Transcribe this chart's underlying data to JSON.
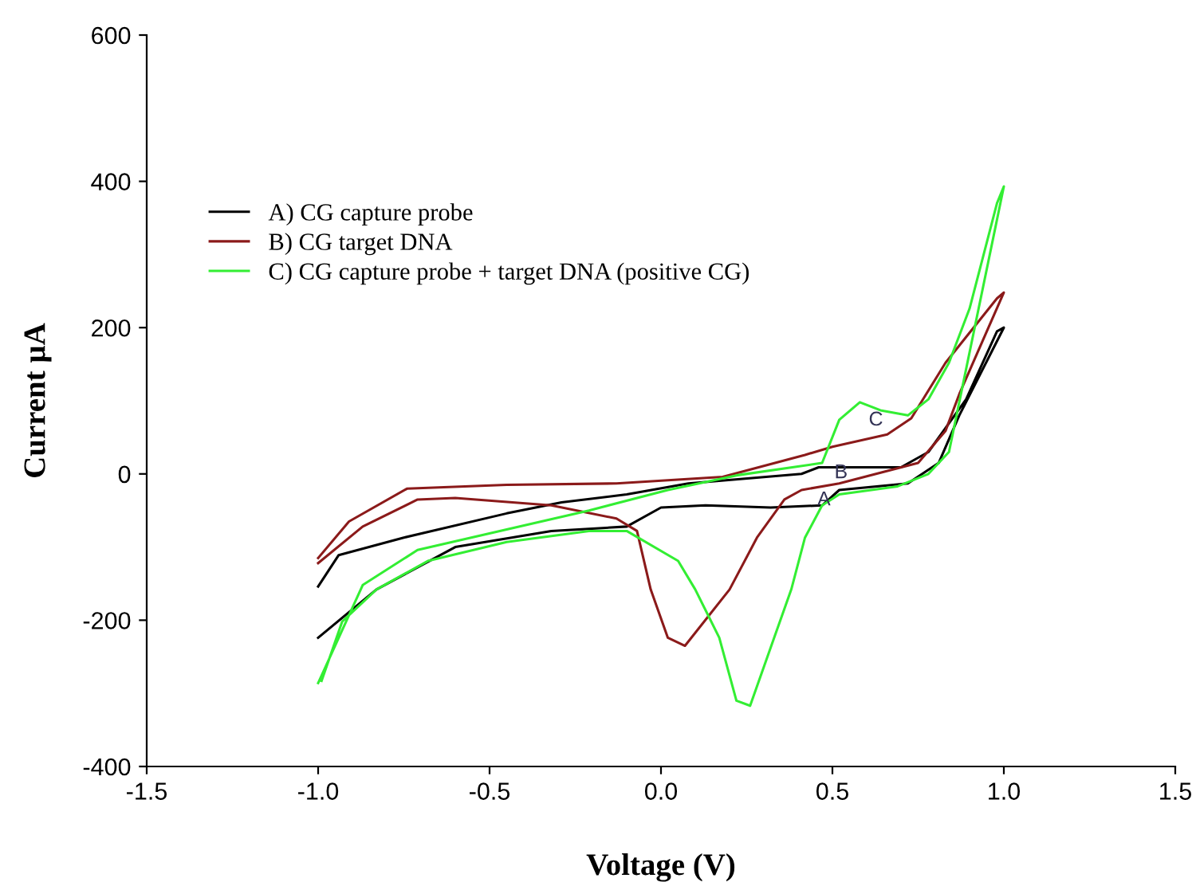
{
  "chart_data": {
    "type": "line",
    "xlabel": "Voltage (V)",
    "ylabel": "Current µA",
    "xlim": [
      -1.5,
      1.5
    ],
    "ylim": [
      -400,
      600
    ],
    "xticks": [
      -1.5,
      {
        "value": -1.0,
        "label": "-1.0"
      },
      -0.5,
      {
        "value": 0.0,
        "label": "0.0"
      },
      0.5,
      {
        "value": 1.0,
        "label": "1.0"
      },
      1.5
    ],
    "yticks": [
      -400,
      -200,
      0,
      200,
      400,
      600
    ],
    "legend": "top left",
    "grid": false,
    "marker": "none",
    "line_style": "solid",
    "series": [
      {
        "name": "A) CG capture probe",
        "color": "#000000",
        "x": [
          -1.0,
          -0.94,
          -0.75,
          -0.45,
          -0.29,
          -0.1,
          0.08,
          0.41,
          0.46,
          0.7,
          0.78,
          0.89,
          0.98,
          1.0,
          0.87,
          0.81,
          0.72,
          0.52,
          0.47,
          0.32,
          0.13,
          0.0,
          -0.1,
          -0.32,
          -0.6,
          -0.83,
          -1.0
        ],
        "values": [
          -154,
          -111,
          -87,
          -54,
          -39,
          -28,
          -13,
          0,
          9,
          9,
          30,
          102,
          195,
          200,
          80,
          15,
          -13,
          -22,
          -43,
          -46,
          -43,
          -46,
          -72,
          -78,
          -100,
          -158,
          -224
        ]
      },
      {
        "name": "B) CG target DNA",
        "color": "#8b1a1a",
        "x": [
          -1.0,
          -0.91,
          -0.74,
          -0.45,
          -0.13,
          0.18,
          0.42,
          0.5,
          0.66,
          0.73,
          0.83,
          0.98,
          1.0,
          0.87,
          0.83,
          0.75,
          0.52,
          0.41,
          0.36,
          0.28,
          0.2,
          0.07,
          0.02,
          -0.03,
          -0.07,
          -0.13,
          -0.32,
          -0.6,
          -0.71,
          -0.87,
          -1.0
        ],
        "values": [
          -115,
          -65,
          -20,
          -15,
          -13,
          -4,
          26,
          37,
          54,
          76,
          152,
          240,
          248,
          109,
          59,
          15,
          -13,
          -22,
          -35,
          -87,
          -158,
          -235,
          -224,
          -158,
          -78,
          -61,
          -43,
          -33,
          -35,
          -72,
          -122
        ]
      },
      {
        "name": "C) CG capture probe + target DNA (positive CG)",
        "color": "#33ee33",
        "x": [
          -1.0,
          -0.87,
          -0.71,
          -0.45,
          -0.21,
          0.02,
          0.22,
          0.47,
          0.52,
          0.58,
          0.64,
          0.72,
          0.78,
          0.84,
          0.9,
          0.98,
          1.0,
          0.84,
          0.78,
          0.69,
          0.52,
          0.47,
          0.42,
          0.38,
          0.33,
          0.26,
          0.22,
          0.17,
          0.1,
          0.05,
          -0.1,
          -0.21,
          -0.45,
          -0.68,
          -0.83,
          -0.93,
          -0.99
        ],
        "values": [
          -286,
          -152,
          -104,
          -76,
          -50,
          -22,
          -2,
          15,
          74,
          98,
          87,
          80,
          102,
          152,
          226,
          370,
          393,
          30,
          0,
          -17,
          -28,
          -43,
          -87,
          -158,
          -224,
          -317,
          -310,
          -224,
          -158,
          -119,
          -78,
          -78,
          -93,
          -119,
          -158,
          -202,
          -283
        ]
      }
    ],
    "annotations": [
      {
        "text": "A",
        "x": 0.43,
        "y": -11
      },
      {
        "text": "B",
        "x": 0.48,
        "y": 26
      },
      {
        "text": "C",
        "x": 0.58,
        "y": 98
      }
    ]
  }
}
